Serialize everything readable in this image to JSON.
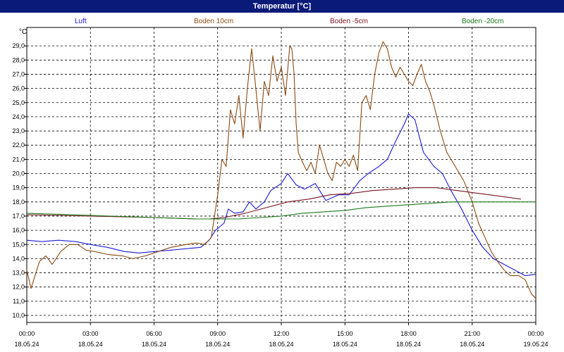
{
  "window": {
    "title": "Temperatur [°C]"
  },
  "chart_data": {
    "type": "line",
    "unit": "°C",
    "ylim": [
      10,
      30
    ],
    "xlim": [
      0,
      24
    ],
    "grid": true,
    "legend_position": "top",
    "yticks": [
      "10,0",
      "11,0",
      "12,0",
      "13,0",
      "14,0",
      "15,0",
      "16,0",
      "17,0",
      "18,0",
      "19,0",
      "20,0",
      "21,0",
      "22,0",
      "23,0",
      "24,0",
      "25,0",
      "26,0",
      "27,0",
      "28,0",
      "29,0"
    ],
    "xticks": [
      {
        "time": "00:00",
        "date": "18.05.24"
      },
      {
        "time": "03:00",
        "date": "18.05.24"
      },
      {
        "time": "06:00",
        "date": "18.05.24"
      },
      {
        "time": "09:00",
        "date": "18.05.24"
      },
      {
        "time": "12:00",
        "date": "18.05.24"
      },
      {
        "time": "15:00",
        "date": "18.05.24"
      },
      {
        "time": "18:00",
        "date": "18.05.24"
      },
      {
        "time": "21:00",
        "date": "18.05.24"
      },
      {
        "time": "00:00",
        "date": "19.05.24"
      }
    ],
    "series": [
      {
        "name": "Luft",
        "color": "#1a1ad6",
        "points": [
          [
            0,
            15.3
          ],
          [
            0.7,
            15.2
          ],
          [
            1.5,
            15.3
          ],
          [
            2.3,
            15.2
          ],
          [
            3,
            15.0
          ],
          [
            3.8,
            14.8
          ],
          [
            4.6,
            14.5
          ],
          [
            5.3,
            14.4
          ],
          [
            6,
            14.5
          ],
          [
            6.8,
            14.6
          ],
          [
            7.5,
            14.7
          ],
          [
            8.2,
            14.8
          ],
          [
            8.6,
            15.3
          ],
          [
            8.9,
            16.0
          ],
          [
            9.3,
            16.5
          ],
          [
            9.5,
            17.5
          ],
          [
            9.8,
            17.2
          ],
          [
            10.2,
            17.3
          ],
          [
            10.5,
            18.0
          ],
          [
            10.8,
            17.5
          ],
          [
            11.2,
            18.0
          ],
          [
            11.5,
            18.8
          ],
          [
            12,
            19.3
          ],
          [
            12.3,
            20.0
          ],
          [
            12.7,
            19.2
          ],
          [
            13.1,
            18.9
          ],
          [
            13.6,
            19.3
          ],
          [
            14.1,
            18.1
          ],
          [
            14.7,
            18.5
          ],
          [
            15.2,
            18.5
          ],
          [
            15.7,
            19.5
          ],
          [
            16.1,
            20.0
          ],
          [
            16.6,
            20.5
          ],
          [
            17,
            21.0
          ],
          [
            17.4,
            22.3
          ],
          [
            17.8,
            23.5
          ],
          [
            18,
            24.2
          ],
          [
            18.3,
            23.8
          ],
          [
            18.7,
            21.5
          ],
          [
            19.2,
            20.5
          ],
          [
            19.6,
            20.0
          ],
          [
            20,
            18.8
          ],
          [
            20.5,
            17.5
          ],
          [
            21,
            16.0
          ],
          [
            21.5,
            14.8
          ],
          [
            22,
            14.0
          ],
          [
            22.5,
            13.6
          ],
          [
            23,
            13.2
          ],
          [
            23.5,
            12.8
          ],
          [
            24,
            12.9
          ]
        ]
      },
      {
        "name": "Boden 10cm",
        "color": "#8a4a12",
        "points": [
          [
            0,
            13.2
          ],
          [
            0.2,
            11.9
          ],
          [
            0.6,
            13.8
          ],
          [
            0.9,
            14.2
          ],
          [
            1.2,
            13.6
          ],
          [
            1.6,
            14.5
          ],
          [
            2,
            15.0
          ],
          [
            2.4,
            15.0
          ],
          [
            2.8,
            14.6
          ],
          [
            3.2,
            14.5
          ],
          [
            3.8,
            14.3
          ],
          [
            4.5,
            14.2
          ],
          [
            5,
            14.0
          ],
          [
            5.6,
            14.2
          ],
          [
            6.2,
            14.5
          ],
          [
            6.8,
            14.8
          ],
          [
            7.5,
            15.0
          ],
          [
            8,
            15.1
          ],
          [
            8.4,
            15.0
          ],
          [
            8.7,
            15.5
          ],
          [
            9,
            18.5
          ],
          [
            9.2,
            21.0
          ],
          [
            9.4,
            20.5
          ],
          [
            9.6,
            24.5
          ],
          [
            9.8,
            23.5
          ],
          [
            10,
            25.5
          ],
          [
            10.2,
            22.5
          ],
          [
            10.4,
            26.0
          ],
          [
            10.6,
            28.8
          ],
          [
            10.8,
            26.0
          ],
          [
            11,
            23.0
          ],
          [
            11.2,
            26.5
          ],
          [
            11.4,
            25.5
          ],
          [
            11.6,
            28.3
          ],
          [
            11.8,
            26.5
          ],
          [
            12,
            27.5
          ],
          [
            12.2,
            25.5
          ],
          [
            12.4,
            29.0
          ],
          [
            12.5,
            28.8
          ],
          [
            12.6,
            27.0
          ],
          [
            12.7,
            23.5
          ],
          [
            12.8,
            21.5
          ],
          [
            13,
            20.8
          ],
          [
            13.2,
            20.2
          ],
          [
            13.4,
            20.8
          ],
          [
            13.6,
            20.0
          ],
          [
            13.8,
            22.0
          ],
          [
            14,
            21.0
          ],
          [
            14.2,
            20.0
          ],
          [
            14.4,
            19.5
          ],
          [
            14.6,
            20.8
          ],
          [
            14.8,
            20.5
          ],
          [
            15,
            21.0
          ],
          [
            15.2,
            20.5
          ],
          [
            15.4,
            21.3
          ],
          [
            15.6,
            20.2
          ],
          [
            15.8,
            25.0
          ],
          [
            16,
            25.5
          ],
          [
            16.2,
            24.5
          ],
          [
            16.4,
            27.0
          ],
          [
            16.6,
            28.5
          ],
          [
            16.8,
            29.3
          ],
          [
            17,
            28.8
          ],
          [
            17.2,
            27.5
          ],
          [
            17.4,
            26.8
          ],
          [
            17.6,
            27.5
          ],
          [
            17.8,
            27.0
          ],
          [
            18,
            26.5
          ],
          [
            18.2,
            26.2
          ],
          [
            18.4,
            27.0
          ],
          [
            18.6,
            27.7
          ],
          [
            18.8,
            26.5
          ],
          [
            19,
            25.8
          ],
          [
            19.2,
            24.8
          ],
          [
            19.5,
            23.0
          ],
          [
            19.8,
            21.5
          ],
          [
            20.2,
            20.5
          ],
          [
            20.6,
            19.5
          ],
          [
            21,
            18.0
          ],
          [
            21.3,
            16.5
          ],
          [
            21.6,
            15.5
          ],
          [
            21.9,
            14.5
          ],
          [
            22.2,
            13.8
          ],
          [
            22.5,
            13.2
          ],
          [
            22.8,
            12.8
          ],
          [
            23.2,
            12.8
          ],
          [
            23.5,
            12.5
          ],
          [
            23.8,
            11.5
          ],
          [
            24,
            11.2
          ],
          [
            24.2,
            10.5
          ],
          [
            24.5,
            10.8
          ],
          [
            24.8,
            11.0
          ]
        ]
      },
      {
        "name": "Boden -5cm",
        "color": "#7a1522",
        "points": [
          [
            0,
            17.1
          ],
          [
            3,
            17.0
          ],
          [
            6,
            16.9
          ],
          [
            8,
            16.8
          ],
          [
            8.6,
            16.8
          ],
          [
            9.3,
            16.9
          ],
          [
            10.3,
            17.2
          ],
          [
            11.3,
            17.6
          ],
          [
            12.3,
            18.0
          ],
          [
            13.3,
            18.2
          ],
          [
            14.3,
            18.5
          ],
          [
            15.3,
            18.6
          ],
          [
            16.3,
            18.8
          ],
          [
            17.3,
            18.9
          ],
          [
            18.3,
            19.0
          ],
          [
            19.3,
            19.0
          ],
          [
            20.3,
            18.8
          ],
          [
            21.3,
            18.6
          ],
          [
            22.3,
            18.4
          ],
          [
            23.3,
            18.2
          ],
          [
            24.3,
            18.0
          ],
          [
            25,
            18.0
          ]
        ]
      },
      {
        "name": "Boden -20cm",
        "color": "#1a7a1a",
        "points": [
          [
            0,
            17.2
          ],
          [
            2,
            17.1
          ],
          [
            4,
            17.0
          ],
          [
            6,
            16.9
          ],
          [
            8,
            16.8
          ],
          [
            10,
            16.8
          ],
          [
            12,
            17.0
          ],
          [
            13,
            17.2
          ],
          [
            14,
            17.3
          ],
          [
            15,
            17.4
          ],
          [
            16,
            17.6
          ],
          [
            17,
            17.7
          ],
          [
            18,
            17.8
          ],
          [
            19,
            17.9
          ],
          [
            20,
            18.0
          ],
          [
            22,
            18.0
          ],
          [
            24,
            18.0
          ],
          [
            25,
            18.0
          ]
        ]
      }
    ]
  }
}
